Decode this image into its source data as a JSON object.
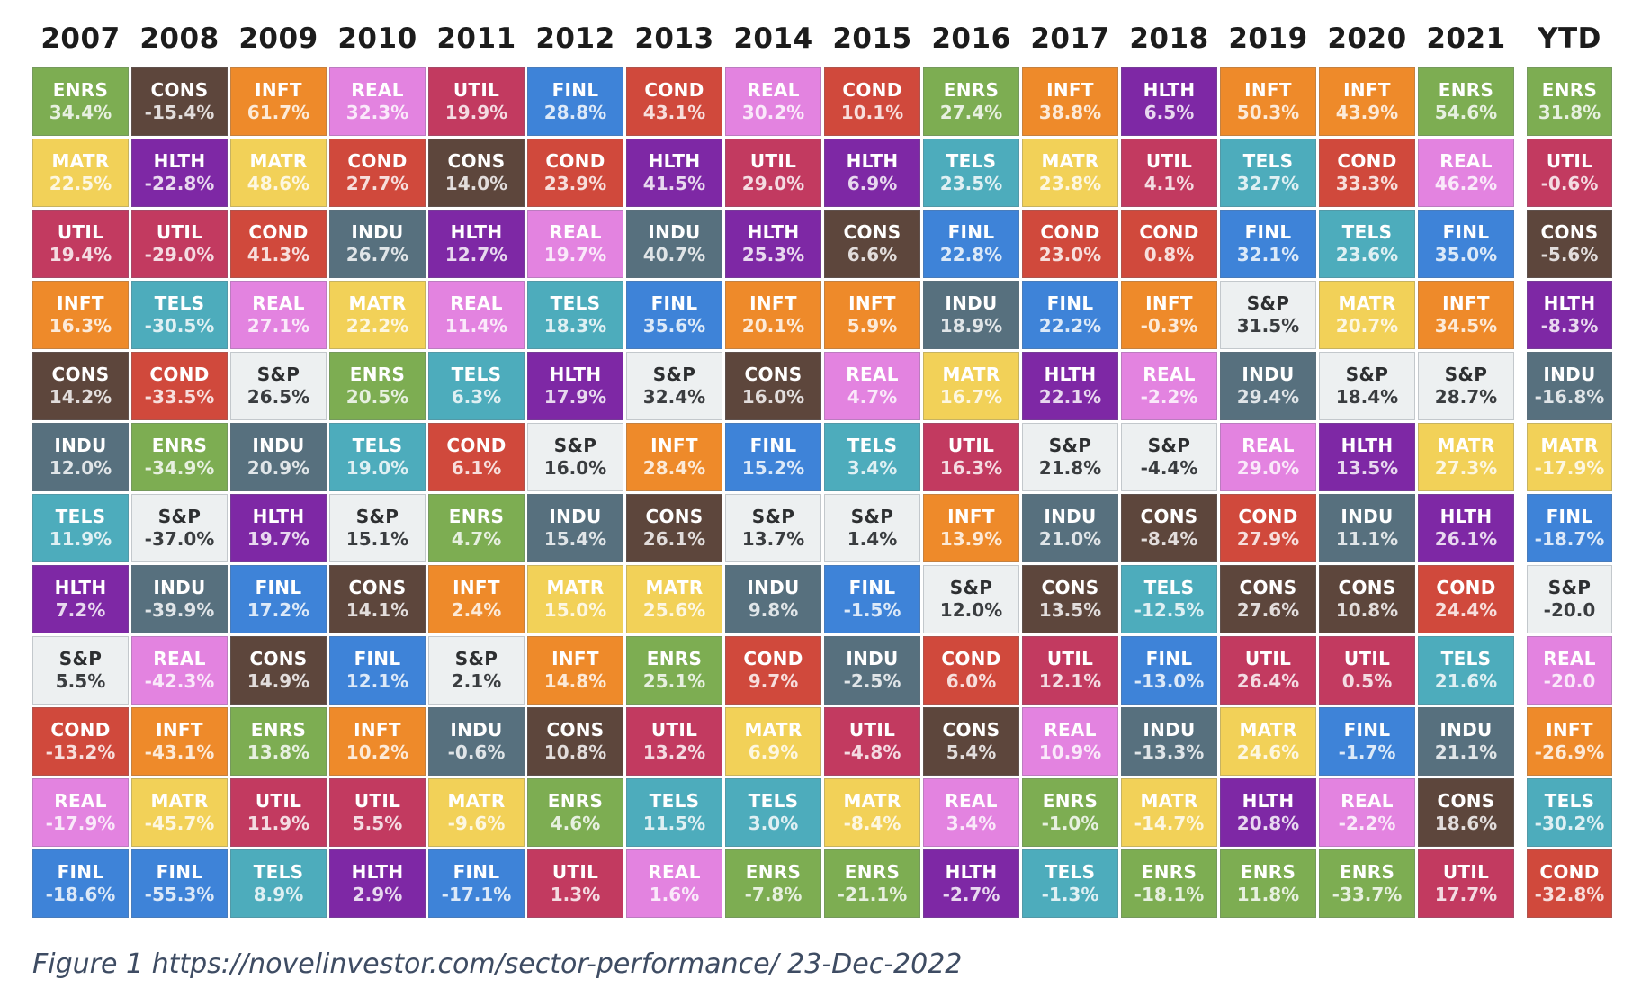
{
  "caption": "Figure 1 https://novelinvestor.com/sector-performance/ 23-Dec-2022",
  "sector_colors": {
    "ENRS": "#7dad52",
    "MATR": "#f2d158",
    "UTIL": "#c23a60",
    "INFT": "#ee8a2a",
    "CONS": "#5d463c",
    "INDU": "#57707e",
    "TELS": "#4dacbc",
    "HLTH": "#7e28a5",
    "S&P": "#edf0f1",
    "COND": "#d0493c",
    "REAL": "#e383e0",
    "FINL": "#3e83d8"
  },
  "chart_data": {
    "type": "heatmap",
    "title": "S&P 500 sector performance ranked best to worst by year",
    "unit": "total return %",
    "grid": "16 columns (2007-2021 plus YTD) x 12 ranked rows",
    "legend_position": "none",
    "columns": [
      {
        "year": "2007",
        "cells": [
          {
            "sector": "ENRS",
            "value": "34.4%"
          },
          {
            "sector": "MATR",
            "value": "22.5%"
          },
          {
            "sector": "UTIL",
            "value": "19.4%"
          },
          {
            "sector": "INFT",
            "value": "16.3%"
          },
          {
            "sector": "CONS",
            "value": "14.2%"
          },
          {
            "sector": "INDU",
            "value": "12.0%"
          },
          {
            "sector": "TELS",
            "value": "11.9%"
          },
          {
            "sector": "HLTH",
            "value": "7.2%"
          },
          {
            "sector": "S&P",
            "value": "5.5%"
          },
          {
            "sector": "COND",
            "value": "-13.2%"
          },
          {
            "sector": "REAL",
            "value": "-17.9%"
          },
          {
            "sector": "FINL",
            "value": "-18.6%"
          }
        ]
      },
      {
        "year": "2008",
        "cells": [
          {
            "sector": "CONS",
            "value": "-15.4%"
          },
          {
            "sector": "HLTH",
            "value": "-22.8%"
          },
          {
            "sector": "UTIL",
            "value": "-29.0%"
          },
          {
            "sector": "TELS",
            "value": "-30.5%"
          },
          {
            "sector": "COND",
            "value": "-33.5%"
          },
          {
            "sector": "ENRS",
            "value": "-34.9%"
          },
          {
            "sector": "S&P",
            "value": "-37.0%"
          },
          {
            "sector": "INDU",
            "value": "-39.9%"
          },
          {
            "sector": "REAL",
            "value": "-42.3%"
          },
          {
            "sector": "INFT",
            "value": "-43.1%"
          },
          {
            "sector": "MATR",
            "value": "-45.7%"
          },
          {
            "sector": "FINL",
            "value": "-55.3%"
          }
        ]
      },
      {
        "year": "2009",
        "cells": [
          {
            "sector": "INFT",
            "value": "61.7%"
          },
          {
            "sector": "MATR",
            "value": "48.6%"
          },
          {
            "sector": "COND",
            "value": "41.3%"
          },
          {
            "sector": "REAL",
            "value": "27.1%"
          },
          {
            "sector": "S&P",
            "value": "26.5%"
          },
          {
            "sector": "INDU",
            "value": "20.9%"
          },
          {
            "sector": "HLTH",
            "value": "19.7%"
          },
          {
            "sector": "FINL",
            "value": "17.2%"
          },
          {
            "sector": "CONS",
            "value": "14.9%"
          },
          {
            "sector": "ENRS",
            "value": "13.8%"
          },
          {
            "sector": "UTIL",
            "value": "11.9%"
          },
          {
            "sector": "TELS",
            "value": "8.9%"
          }
        ]
      },
      {
        "year": "2010",
        "cells": [
          {
            "sector": "REAL",
            "value": "32.3%"
          },
          {
            "sector": "COND",
            "value": "27.7%"
          },
          {
            "sector": "INDU",
            "value": "26.7%"
          },
          {
            "sector": "MATR",
            "value": "22.2%"
          },
          {
            "sector": "ENRS",
            "value": "20.5%"
          },
          {
            "sector": "TELS",
            "value": "19.0%"
          },
          {
            "sector": "S&P",
            "value": "15.1%"
          },
          {
            "sector": "CONS",
            "value": "14.1%"
          },
          {
            "sector": "FINL",
            "value": "12.1%"
          },
          {
            "sector": "INFT",
            "value": "10.2%"
          },
          {
            "sector": "UTIL",
            "value": "5.5%"
          },
          {
            "sector": "HLTH",
            "value": "2.9%"
          }
        ]
      },
      {
        "year": "2011",
        "cells": [
          {
            "sector": "UTIL",
            "value": "19.9%"
          },
          {
            "sector": "CONS",
            "value": "14.0%"
          },
          {
            "sector": "HLTH",
            "value": "12.7%"
          },
          {
            "sector": "REAL",
            "value": "11.4%"
          },
          {
            "sector": "TELS",
            "value": "6.3%"
          },
          {
            "sector": "COND",
            "value": "6.1%"
          },
          {
            "sector": "ENRS",
            "value": "4.7%"
          },
          {
            "sector": "INFT",
            "value": "2.4%"
          },
          {
            "sector": "S&P",
            "value": "2.1%"
          },
          {
            "sector": "INDU",
            "value": "-0.6%"
          },
          {
            "sector": "MATR",
            "value": "-9.6%"
          },
          {
            "sector": "FINL",
            "value": "-17.1%"
          }
        ]
      },
      {
        "year": "2012",
        "cells": [
          {
            "sector": "FINL",
            "value": "28.8%"
          },
          {
            "sector": "COND",
            "value": "23.9%"
          },
          {
            "sector": "REAL",
            "value": "19.7%"
          },
          {
            "sector": "TELS",
            "value": "18.3%"
          },
          {
            "sector": "HLTH",
            "value": "17.9%"
          },
          {
            "sector": "S&P",
            "value": "16.0%"
          },
          {
            "sector": "INDU",
            "value": "15.4%"
          },
          {
            "sector": "MATR",
            "value": "15.0%"
          },
          {
            "sector": "INFT",
            "value": "14.8%"
          },
          {
            "sector": "CONS",
            "value": "10.8%"
          },
          {
            "sector": "ENRS",
            "value": "4.6%"
          },
          {
            "sector": "UTIL",
            "value": "1.3%"
          }
        ]
      },
      {
        "year": "2013",
        "cells": [
          {
            "sector": "COND",
            "value": "43.1%"
          },
          {
            "sector": "HLTH",
            "value": "41.5%"
          },
          {
            "sector": "INDU",
            "value": "40.7%"
          },
          {
            "sector": "FINL",
            "value": "35.6%"
          },
          {
            "sector": "S&P",
            "value": "32.4%"
          },
          {
            "sector": "INFT",
            "value": "28.4%"
          },
          {
            "sector": "CONS",
            "value": "26.1%"
          },
          {
            "sector": "MATR",
            "value": "25.6%"
          },
          {
            "sector": "ENRS",
            "value": "25.1%"
          },
          {
            "sector": "UTIL",
            "value": "13.2%"
          },
          {
            "sector": "TELS",
            "value": "11.5%"
          },
          {
            "sector": "REAL",
            "value": "1.6%"
          }
        ]
      },
      {
        "year": "2014",
        "cells": [
          {
            "sector": "REAL",
            "value": "30.2%"
          },
          {
            "sector": "UTIL",
            "value": "29.0%"
          },
          {
            "sector": "HLTH",
            "value": "25.3%"
          },
          {
            "sector": "INFT",
            "value": "20.1%"
          },
          {
            "sector": "CONS",
            "value": "16.0%"
          },
          {
            "sector": "FINL",
            "value": "15.2%"
          },
          {
            "sector": "S&P",
            "value": "13.7%"
          },
          {
            "sector": "INDU",
            "value": "9.8%"
          },
          {
            "sector": "COND",
            "value": "9.7%"
          },
          {
            "sector": "MATR",
            "value": "6.9%"
          },
          {
            "sector": "TELS",
            "value": "3.0%"
          },
          {
            "sector": "ENRS",
            "value": "-7.8%"
          }
        ]
      },
      {
        "year": "2015",
        "cells": [
          {
            "sector": "COND",
            "value": "10.1%"
          },
          {
            "sector": "HLTH",
            "value": "6.9%"
          },
          {
            "sector": "CONS",
            "value": "6.6%"
          },
          {
            "sector": "INFT",
            "value": "5.9%"
          },
          {
            "sector": "REAL",
            "value": "4.7%"
          },
          {
            "sector": "TELS",
            "value": "3.4%"
          },
          {
            "sector": "S&P",
            "value": "1.4%"
          },
          {
            "sector": "FINL",
            "value": "-1.5%"
          },
          {
            "sector": "INDU",
            "value": "-2.5%"
          },
          {
            "sector": "UTIL",
            "value": "-4.8%"
          },
          {
            "sector": "MATR",
            "value": "-8.4%"
          },
          {
            "sector": "ENRS",
            "value": "-21.1%"
          }
        ]
      },
      {
        "year": "2016",
        "cells": [
          {
            "sector": "ENRS",
            "value": "27.4%"
          },
          {
            "sector": "TELS",
            "value": "23.5%"
          },
          {
            "sector": "FINL",
            "value": "22.8%"
          },
          {
            "sector": "INDU",
            "value": "18.9%"
          },
          {
            "sector": "MATR",
            "value": "16.7%"
          },
          {
            "sector": "UTIL",
            "value": "16.3%"
          },
          {
            "sector": "INFT",
            "value": "13.9%"
          },
          {
            "sector": "S&P",
            "value": "12.0%"
          },
          {
            "sector": "COND",
            "value": "6.0%"
          },
          {
            "sector": "CONS",
            "value": "5.4%"
          },
          {
            "sector": "REAL",
            "value": "3.4%"
          },
          {
            "sector": "HLTH",
            "value": "-2.7%"
          }
        ]
      },
      {
        "year": "2017",
        "cells": [
          {
            "sector": "INFT",
            "value": "38.8%"
          },
          {
            "sector": "MATR",
            "value": "23.8%"
          },
          {
            "sector": "COND",
            "value": "23.0%"
          },
          {
            "sector": "FINL",
            "value": "22.2%"
          },
          {
            "sector": "HLTH",
            "value": "22.1%"
          },
          {
            "sector": "S&P",
            "value": "21.8%"
          },
          {
            "sector": "INDU",
            "value": "21.0%"
          },
          {
            "sector": "CONS",
            "value": "13.5%"
          },
          {
            "sector": "UTIL",
            "value": "12.1%"
          },
          {
            "sector": "REAL",
            "value": "10.9%"
          },
          {
            "sector": "ENRS",
            "value": "-1.0%"
          },
          {
            "sector": "TELS",
            "value": "-1.3%"
          }
        ]
      },
      {
        "year": "2018",
        "cells": [
          {
            "sector": "HLTH",
            "value": "6.5%"
          },
          {
            "sector": "UTIL",
            "value": "4.1%"
          },
          {
            "sector": "COND",
            "value": "0.8%"
          },
          {
            "sector": "INFT",
            "value": "-0.3%"
          },
          {
            "sector": "REAL",
            "value": "-2.2%"
          },
          {
            "sector": "S&P",
            "value": "-4.4%"
          },
          {
            "sector": "CONS",
            "value": "-8.4%"
          },
          {
            "sector": "TELS",
            "value": "-12.5%"
          },
          {
            "sector": "FINL",
            "value": "-13.0%"
          },
          {
            "sector": "INDU",
            "value": "-13.3%"
          },
          {
            "sector": "MATR",
            "value": "-14.7%"
          },
          {
            "sector": "ENRS",
            "value": "-18.1%"
          }
        ]
      },
      {
        "year": "2019",
        "cells": [
          {
            "sector": "INFT",
            "value": "50.3%"
          },
          {
            "sector": "TELS",
            "value": "32.7%"
          },
          {
            "sector": "FINL",
            "value": "32.1%"
          },
          {
            "sector": "S&P",
            "value": "31.5%"
          },
          {
            "sector": "INDU",
            "value": "29.4%"
          },
          {
            "sector": "REAL",
            "value": "29.0%"
          },
          {
            "sector": "COND",
            "value": "27.9%"
          },
          {
            "sector": "CONS",
            "value": "27.6%"
          },
          {
            "sector": "UTIL",
            "value": "26.4%"
          },
          {
            "sector": "MATR",
            "value": "24.6%"
          },
          {
            "sector": "HLTH",
            "value": "20.8%"
          },
          {
            "sector": "ENRS",
            "value": "11.8%"
          }
        ]
      },
      {
        "year": "2020",
        "cells": [
          {
            "sector": "INFT",
            "value": "43.9%"
          },
          {
            "sector": "COND",
            "value": "33.3%"
          },
          {
            "sector": "TELS",
            "value": "23.6%"
          },
          {
            "sector": "MATR",
            "value": "20.7%"
          },
          {
            "sector": "S&P",
            "value": "18.4%"
          },
          {
            "sector": "HLTH",
            "value": "13.5%"
          },
          {
            "sector": "INDU",
            "value": "11.1%"
          },
          {
            "sector": "CONS",
            "value": "10.8%"
          },
          {
            "sector": "UTIL",
            "value": "0.5%"
          },
          {
            "sector": "FINL",
            "value": "-1.7%"
          },
          {
            "sector": "REAL",
            "value": "-2.2%"
          },
          {
            "sector": "ENRS",
            "value": "-33.7%"
          }
        ]
      },
      {
        "year": "2021",
        "cells": [
          {
            "sector": "ENRS",
            "value": "54.6%"
          },
          {
            "sector": "REAL",
            "value": "46.2%"
          },
          {
            "sector": "FINL",
            "value": "35.0%"
          },
          {
            "sector": "INFT",
            "value": "34.5%"
          },
          {
            "sector": "S&P",
            "value": "28.7%"
          },
          {
            "sector": "MATR",
            "value": "27.3%"
          },
          {
            "sector": "HLTH",
            "value": "26.1%"
          },
          {
            "sector": "COND",
            "value": "24.4%"
          },
          {
            "sector": "TELS",
            "value": "21.6%"
          },
          {
            "sector": "INDU",
            "value": "21.1%"
          },
          {
            "sector": "CONS",
            "value": "18.6%"
          },
          {
            "sector": "UTIL",
            "value": "17.7%"
          }
        ]
      },
      {
        "year": "YTD",
        "cells": [
          {
            "sector": "ENRS",
            "value": "31.8%"
          },
          {
            "sector": "UTIL",
            "value": "-0.6%"
          },
          {
            "sector": "CONS",
            "value": "-5.6%"
          },
          {
            "sector": "HLTH",
            "value": "-8.3%"
          },
          {
            "sector": "INDU",
            "value": "-16.8%"
          },
          {
            "sector": "MATR",
            "value": "-17.9%"
          },
          {
            "sector": "FINL",
            "value": "-18.7%"
          },
          {
            "sector": "S&P",
            "value": "-20.0"
          },
          {
            "sector": "REAL",
            "value": "-20.0"
          },
          {
            "sector": "INFT",
            "value": "-26.9%"
          },
          {
            "sector": "TELS",
            "value": "-30.2%"
          },
          {
            "sector": "COND",
            "value": "-32.8%"
          }
        ]
      }
    ]
  }
}
